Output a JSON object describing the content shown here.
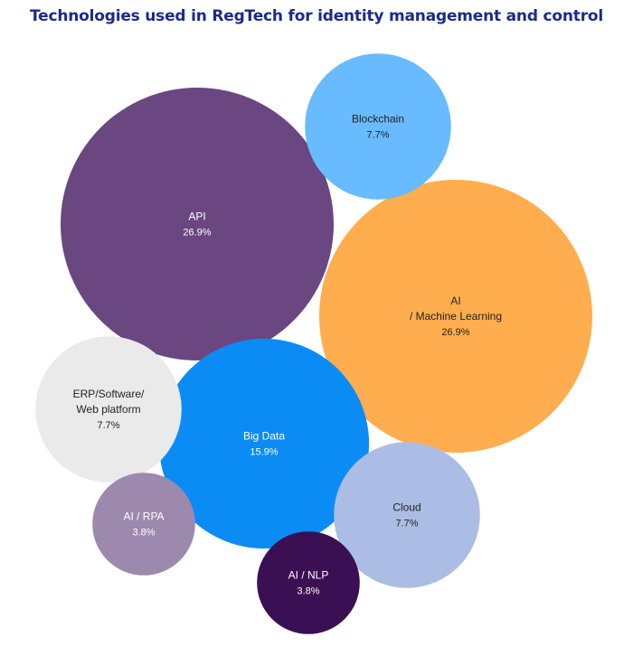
{
  "title": "Technologies used in RegTech for identity management and control",
  "chart_data": {
    "type": "bubble",
    "title": "Technologies used in RegTech for identity management and control",
    "unit": "%",
    "items": [
      {
        "lines": [
          "API"
        ],
        "value": "26.9%",
        "pct": 26.9,
        "color": "#6a4780",
        "text_color": "#ffffff"
      },
      {
        "lines": [
          "AI",
          "/ Machine Learning"
        ],
        "value": "26.9%",
        "pct": 26.9,
        "color": "#ffad4e",
        "text_color": "#222222"
      },
      {
        "lines": [
          "Big Data"
        ],
        "value": "15.9%",
        "pct": 15.9,
        "color": "#0b8cf5",
        "text_color": "#ffffff"
      },
      {
        "lines": [
          "Blockchain"
        ],
        "value": "7.7%",
        "pct": 7.7,
        "color": "#68bbfe",
        "text_color": "#222222"
      },
      {
        "lines": [
          "ERP/Software/",
          "Web platform"
        ],
        "value": "7.7%",
        "pct": 7.7,
        "color": "#eaeaea",
        "text_color": "#222222"
      },
      {
        "lines": [
          "Cloud"
        ],
        "value": "7.7%",
        "pct": 7.7,
        "color": "#abbde4",
        "text_color": "#222222"
      },
      {
        "lines": [
          "AI / RPA"
        ],
        "value": "3.8%",
        "pct": 3.8,
        "color": "#9e89ae",
        "text_color": "#ffffff"
      },
      {
        "lines": [
          "AI / NLP"
        ],
        "value": "3.8%",
        "pct": 3.8,
        "color": "#3b0f53",
        "text_color": "#ffffff"
      }
    ]
  }
}
